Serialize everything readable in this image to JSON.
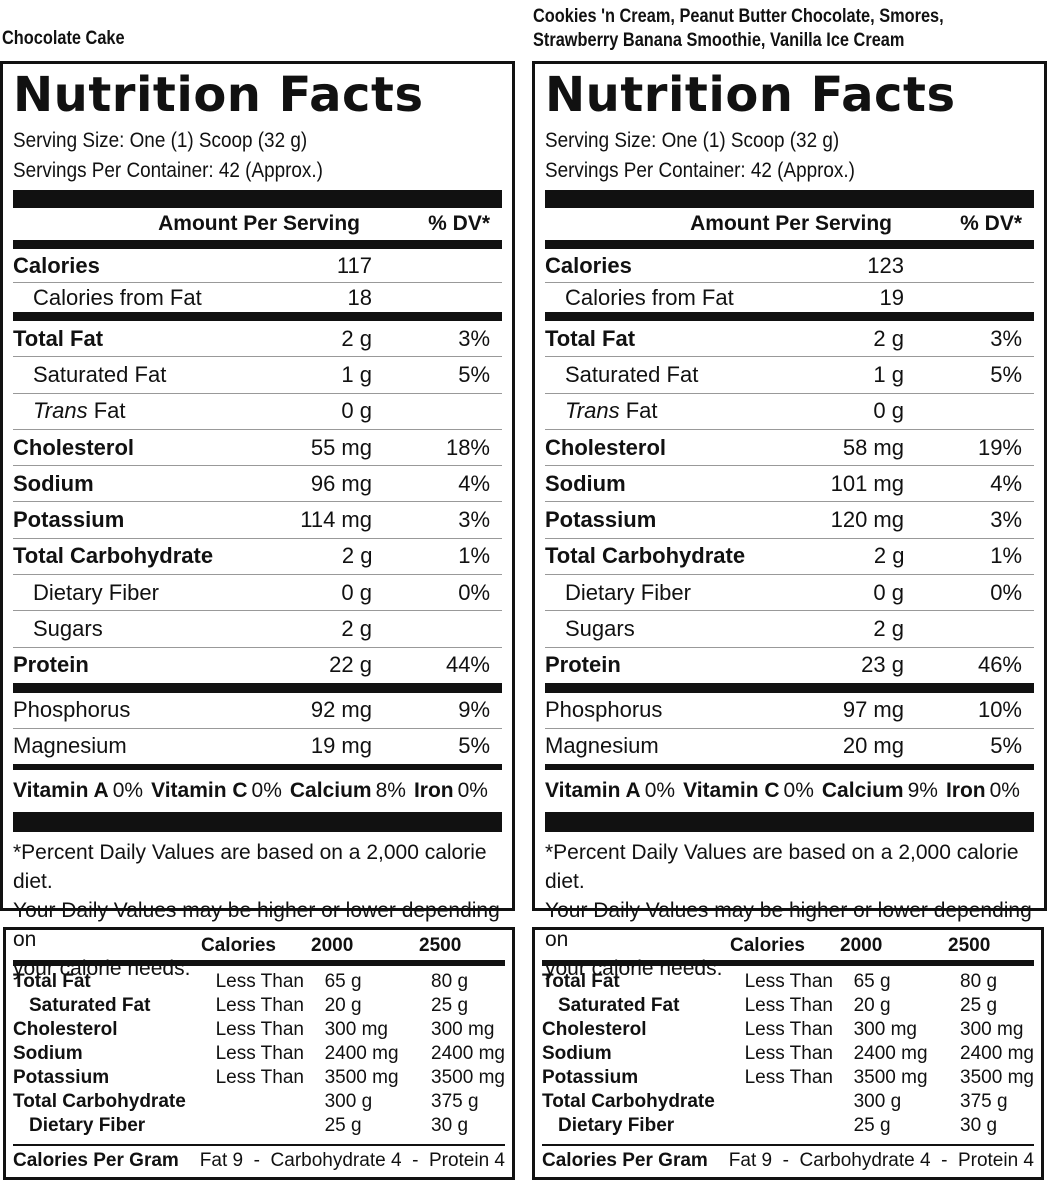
{
  "panels": [
    {
      "flavor": "Chocolate Cake",
      "title": "Nutrition Facts",
      "serving_size": "Serving Size: One (1) Scoop (32 g)",
      "servings_per_container": "Servings Per Container: 42 (Approx.)",
      "header_amount": "Amount Per Serving",
      "header_dv": "% DV*",
      "calories": {
        "label": "Calories",
        "amount": "117"
      },
      "calories_fat": {
        "label": "Calories from Fat",
        "amount": "18"
      },
      "nutrients": [
        {
          "label": "Total Fat",
          "amount": "2 g",
          "dv": "3%"
        },
        {
          "label": "Saturated Fat",
          "amount": "1 g",
          "dv": "5%"
        },
        {
          "label_italic": "Trans",
          "label_rest": " Fat",
          "amount": "0 g",
          "dv": ""
        },
        {
          "label": "Cholesterol",
          "amount": "55 mg",
          "dv": "18%"
        },
        {
          "label": "Sodium",
          "amount": "96 mg",
          "dv": "4%"
        },
        {
          "label": "Potassium",
          "amount": "114 mg",
          "dv": "3%"
        },
        {
          "label": "Total Carbohydrate",
          "amount": "2 g",
          "dv": "1%"
        },
        {
          "label": "Dietary Fiber",
          "amount": "0 g",
          "dv": "0%"
        },
        {
          "label": "Sugars",
          "amount": "2 g",
          "dv": ""
        },
        {
          "label": "Protein",
          "amount": "22 g",
          "dv": "44%"
        }
      ],
      "minerals": [
        {
          "label": "Phosphorus",
          "amount": "92 mg",
          "dv": "9%"
        },
        {
          "label": "Magnesium",
          "amount": "19 mg",
          "dv": "5%"
        }
      ],
      "vitamins": [
        {
          "name": "Vitamin A",
          "value": "0%"
        },
        {
          "name": "Vitamin C",
          "value": "0%"
        },
        {
          "name": "Calcium",
          "value": "8%"
        },
        {
          "name": "Iron",
          "value": "0%"
        }
      ],
      "footnote_1": "*Percent Daily Values are based on a 2,000 calorie diet.",
      "footnote_2": "Your Daily Values may be higher or lower depending on",
      "footnote_3": "your calorie needs."
    },
    {
      "flavor_line1": "Cookies 'n Cream, Peanut Butter Chocolate, Smores,",
      "flavor_line2": "Strawberry Banana Smoothie, Vanilla Ice Cream",
      "title": "Nutrition Facts",
      "serving_size": "Serving Size: One (1) Scoop (32 g)",
      "servings_per_container": "Servings Per Container: 42 (Approx.)",
      "header_amount": "Amount Per Serving",
      "header_dv": "% DV*",
      "calories": {
        "label": "Calories",
        "amount": "123"
      },
      "calories_fat": {
        "label": "Calories from Fat",
        "amount": "19"
      },
      "nutrients": [
        {
          "label": "Total Fat",
          "amount": "2 g",
          "dv": "3%"
        },
        {
          "label": "Saturated Fat",
          "amount": "1 g",
          "dv": "5%"
        },
        {
          "label_italic": "Trans",
          "label_rest": " Fat",
          "amount": "0 g",
          "dv": ""
        },
        {
          "label": "Cholesterol",
          "amount": "58 mg",
          "dv": "19%"
        },
        {
          "label": "Sodium",
          "amount": "101 mg",
          "dv": "4%"
        },
        {
          "label": "Potassium",
          "amount": "120 mg",
          "dv": "3%"
        },
        {
          "label": "Total Carbohydrate",
          "amount": "2 g",
          "dv": "1%"
        },
        {
          "label": "Dietary Fiber",
          "amount": "0 g",
          "dv": "0%"
        },
        {
          "label": "Sugars",
          "amount": "2 g",
          "dv": ""
        },
        {
          "label": "Protein",
          "amount": "23 g",
          "dv": "46%"
        }
      ],
      "minerals": [
        {
          "label": "Phosphorus",
          "amount": "97 mg",
          "dv": "10%"
        },
        {
          "label": "Magnesium",
          "amount": "20 mg",
          "dv": "5%"
        }
      ],
      "vitamins": [
        {
          "name": "Vitamin A",
          "value": "0%"
        },
        {
          "name": "Vitamin C",
          "value": "0%"
        },
        {
          "name": "Calcium",
          "value": "9%"
        },
        {
          "name": "Iron",
          "value": "0%"
        }
      ],
      "footnote_1": "*Percent Daily Values are based on a 2,000 calorie diet.",
      "footnote_2": "Your Daily Values may be higher or lower depending on",
      "footnote_3": "your calorie needs."
    }
  ],
  "dv_reference": {
    "headers": [
      "Calories",
      "2000",
      "2500"
    ],
    "rows": [
      {
        "label": "Total Fat",
        "qual": "Less Than",
        "v2000": "65 g",
        "v2500": "80 g"
      },
      {
        "label": "Saturated Fat",
        "qual": "Less Than",
        "v2000": "20 g",
        "v2500": "25 g"
      },
      {
        "label": "Cholesterol",
        "qual": "Less Than",
        "v2000": "300 mg",
        "v2500": "300 mg"
      },
      {
        "label": "Sodium",
        "qual": "Less Than",
        "v2000": "2400 mg",
        "v2500": "2400 mg"
      },
      {
        "label": "Potassium",
        "qual": "Less Than",
        "v2000": "3500 mg",
        "v2500": "3500 mg"
      },
      {
        "label": "Total Carbohydrate",
        "qual": "",
        "v2000": "300 g",
        "v2500": "375 g"
      },
      {
        "label": "Dietary Fiber",
        "qual": "",
        "v2000": "25 g",
        "v2500": "30 g"
      }
    ],
    "calories_per_gram_label": "Calories Per Gram",
    "calories_per_gram_value": "Fat 9  -  Carbohydrate 4  -  Protein 4"
  }
}
